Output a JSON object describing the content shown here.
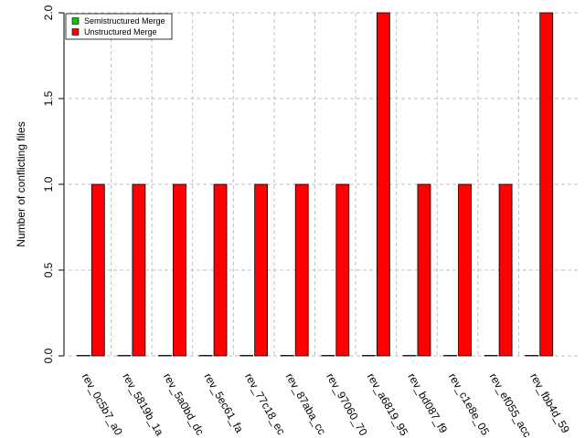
{
  "chart_data": {
    "type": "bar",
    "ylabel": "Number of conflicting files",
    "xlabel": "",
    "ylim": [
      0,
      2
    ],
    "yticks": [
      "0.0",
      "0.5",
      "1.0",
      "1.5",
      "2.0"
    ],
    "categories": [
      "rev_0c5b7_a0",
      "rev_5819b_1a",
      "rev_5a0bd_dc",
      "rev_5ec61_fa",
      "rev_77c18_ec",
      "rev_87aba_cc",
      "rev_97060_70",
      "rev_a6819_95",
      "rev_bd087_f9",
      "rev_c1e8e_05",
      "rev_ef055_acc",
      "rev_fbb4d_59"
    ],
    "series": [
      {
        "name": "Semistructured Merge",
        "color": "#00cc00",
        "values": [
          0,
          0,
          0,
          0,
          0,
          0,
          0,
          0,
          0,
          0,
          0,
          0
        ]
      },
      {
        "name": "Unstructured Merge",
        "color": "#ff0000",
        "values": [
          1,
          1,
          1,
          1,
          1,
          1,
          1,
          2,
          1,
          1,
          1,
          2
        ]
      }
    ],
    "grid": true,
    "legend_position": "top-left"
  }
}
